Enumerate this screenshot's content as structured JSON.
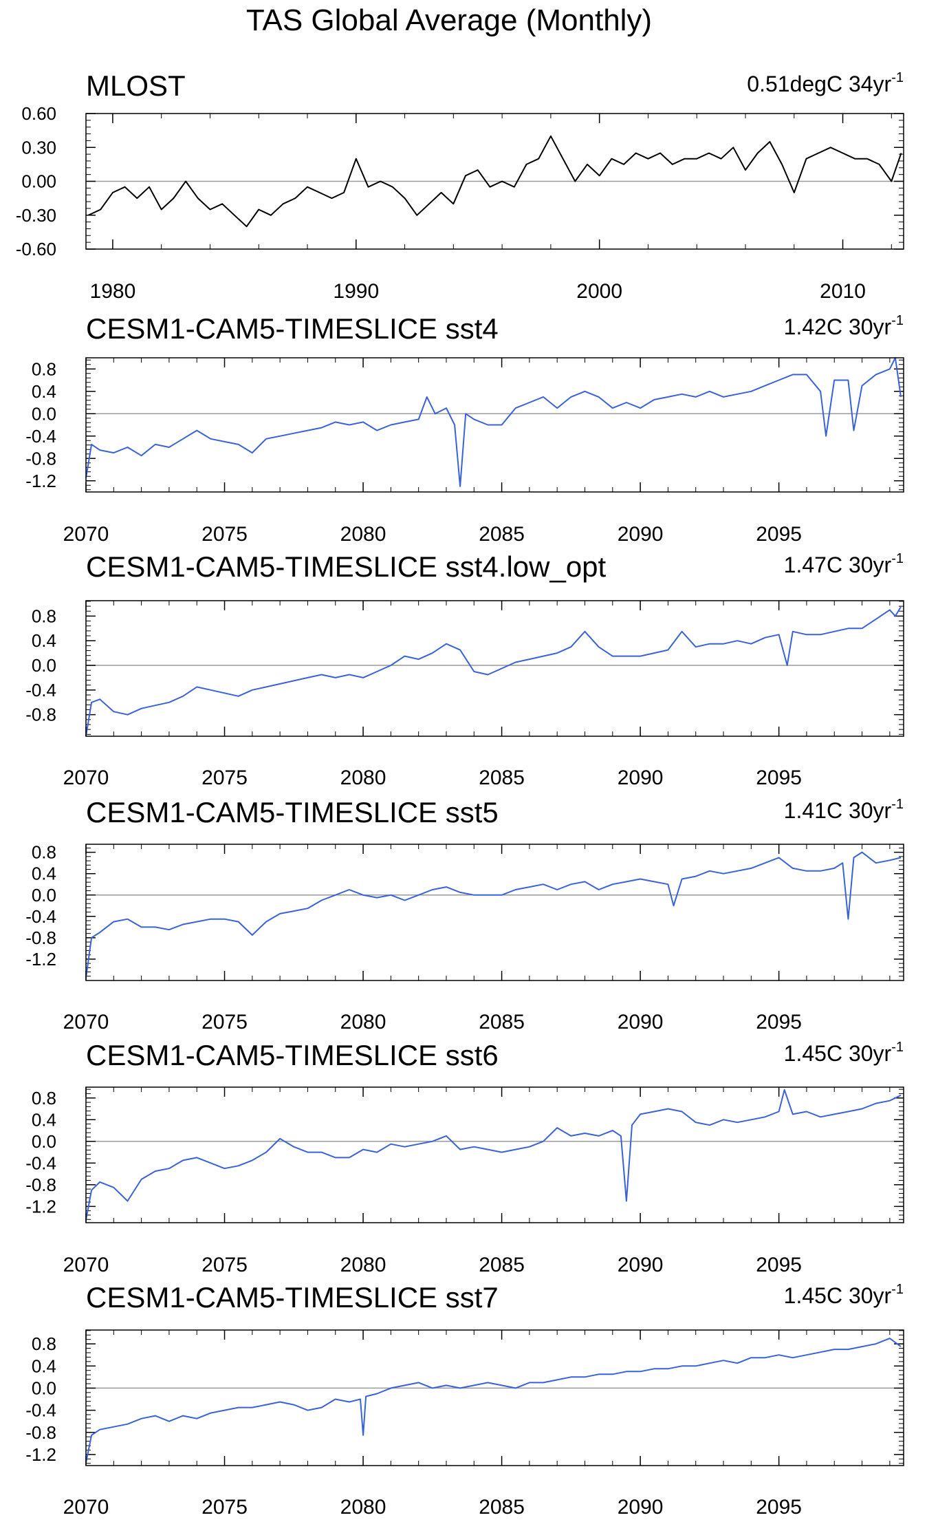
{
  "figure": {
    "title": "TAS Global Average (Monthly)"
  },
  "chart_data": [
    {
      "type": "line",
      "title": "MLOST",
      "trend_value": "0.51degC 34yr",
      "trend_exp": "-1",
      "color": "#000000",
      "xlim": [
        1978.9,
        2012.5
      ],
      "ylim": [
        -0.6,
        0.6
      ],
      "xticks": [
        1980,
        1990,
        2000,
        2010
      ],
      "yticks": [
        -0.6,
        -0.3,
        0.0,
        0.3,
        0.6
      ],
      "ytick_labels": [
        "-0.60",
        "-0.30",
        "0.00",
        "0.30",
        "0.60"
      ],
      "zero_line": true,
      "x": [
        1979.0,
        1979.5,
        1980.0,
        1980.5,
        1981.0,
        1981.5,
        1982.0,
        1982.5,
        1983.0,
        1983.5,
        1984.0,
        1984.5,
        1985.0,
        1985.5,
        1986.0,
        1986.5,
        1987.0,
        1987.5,
        1988.0,
        1988.5,
        1989.0,
        1989.5,
        1990.0,
        1990.5,
        1991.0,
        1991.5,
        1992.0,
        1992.5,
        1993.0,
        1993.5,
        1994.0,
        1994.5,
        1995.0,
        1995.5,
        1996.0,
        1996.5,
        1997.0,
        1997.5,
        1998.0,
        1998.5,
        1999.0,
        1999.5,
        2000.0,
        2000.5,
        2001.0,
        2001.5,
        2002.0,
        2002.5,
        2003.0,
        2003.5,
        2004.0,
        2004.5,
        2005.0,
        2005.5,
        2006.0,
        2006.5,
        2007.0,
        2007.5,
        2008.0,
        2008.5,
        2009.0,
        2009.5,
        2010.0,
        2010.5,
        2011.0,
        2011.5,
        2012.0,
        2012.4
      ],
      "values": [
        -0.3,
        -0.25,
        -0.1,
        -0.05,
        -0.15,
        -0.05,
        -0.25,
        -0.15,
        0.0,
        -0.15,
        -0.25,
        -0.2,
        -0.3,
        -0.4,
        -0.25,
        -0.3,
        -0.2,
        -0.15,
        -0.05,
        -0.1,
        -0.15,
        -0.1,
        0.2,
        -0.05,
        0.0,
        -0.05,
        -0.15,
        -0.3,
        -0.2,
        -0.1,
        -0.2,
        0.05,
        0.1,
        -0.05,
        0.0,
        -0.05,
        0.15,
        0.2,
        0.4,
        0.2,
        0.0,
        0.15,
        0.05,
        0.2,
        0.15,
        0.25,
        0.2,
        0.25,
        0.15,
        0.2,
        0.2,
        0.25,
        0.2,
        0.3,
        0.1,
        0.25,
        0.35,
        0.15,
        -0.1,
        0.2,
        0.25,
        0.3,
        0.25,
        0.2,
        0.2,
        0.15,
        0.0,
        0.25
      ]
    },
    {
      "type": "line",
      "title": "CESM1-CAM5-TIMESLICE sst4",
      "trend_value": "1.42C 30yr",
      "trend_exp": "-1",
      "color": "#3a62d8",
      "xlim": [
        2070,
        2099.5
      ],
      "ylim": [
        -1.4,
        1.0
      ],
      "xticks": [
        2070,
        2075,
        2080,
        2085,
        2090,
        2095
      ],
      "yticks": [
        -1.2,
        -0.8,
        -0.4,
        0.0,
        0.4,
        0.8
      ],
      "ytick_labels": [
        "-1.2",
        "-0.8",
        "-0.4",
        "0.0",
        "0.4",
        "0.8"
      ],
      "zero_line": true,
      "x": [
        2070.0,
        2070.2,
        2070.5,
        2071.0,
        2071.5,
        2072.0,
        2072.5,
        2073.0,
        2073.5,
        2074.0,
        2074.5,
        2075.0,
        2075.5,
        2076.0,
        2076.5,
        2077.0,
        2077.5,
        2078.0,
        2078.5,
        2079.0,
        2079.5,
        2080.0,
        2080.5,
        2081.0,
        2081.5,
        2082.0,
        2082.3,
        2082.6,
        2083.0,
        2083.3,
        2083.5,
        2083.7,
        2084.0,
        2084.5,
        2085.0,
        2085.5,
        2086.0,
        2086.5,
        2087.0,
        2087.5,
        2088.0,
        2088.5,
        2089.0,
        2089.5,
        2090.0,
        2090.5,
        2091.0,
        2091.5,
        2092.0,
        2092.5,
        2093.0,
        2093.5,
        2094.0,
        2094.5,
        2095.0,
        2095.5,
        2096.0,
        2096.5,
        2096.7,
        2097.0,
        2097.5,
        2097.7,
        2098.0,
        2098.5,
        2099.0,
        2099.2,
        2099.4
      ],
      "values": [
        -1.15,
        -0.55,
        -0.65,
        -0.7,
        -0.6,
        -0.75,
        -0.55,
        -0.6,
        -0.45,
        -0.3,
        -0.45,
        -0.5,
        -0.55,
        -0.7,
        -0.45,
        -0.4,
        -0.35,
        -0.3,
        -0.25,
        -0.15,
        -0.2,
        -0.15,
        -0.3,
        -0.2,
        -0.15,
        -0.1,
        0.3,
        0.0,
        0.1,
        -0.2,
        -1.3,
        0.0,
        -0.1,
        -0.2,
        -0.2,
        0.1,
        0.2,
        0.3,
        0.1,
        0.3,
        0.4,
        0.3,
        0.1,
        0.2,
        0.1,
        0.25,
        0.3,
        0.35,
        0.3,
        0.4,
        0.3,
        0.35,
        0.4,
        0.5,
        0.6,
        0.7,
        0.7,
        0.4,
        -0.4,
        0.6,
        0.6,
        -0.3,
        0.5,
        0.7,
        0.8,
        1.0,
        0.3
      ]
    },
    {
      "type": "line",
      "title": "CESM1-CAM5-TIMESLICE sst4.low_opt",
      "trend_value": "1.47C 30yr",
      "trend_exp": "-1",
      "color": "#3a62d8",
      "xlim": [
        2070,
        2099.5
      ],
      "ylim": [
        -1.15,
        1.05
      ],
      "xticks": [
        2070,
        2075,
        2080,
        2085,
        2090,
        2095
      ],
      "yticks": [
        -0.8,
        -0.4,
        0.0,
        0.4,
        0.8
      ],
      "ytick_labels": [
        "-0.8",
        "-0.4",
        "0.0",
        "0.4",
        "0.8"
      ],
      "zero_line": true,
      "x": [
        2070.0,
        2070.2,
        2070.5,
        2071.0,
        2071.5,
        2072.0,
        2072.5,
        2073.0,
        2073.5,
        2074.0,
        2074.5,
        2075.0,
        2075.5,
        2076.0,
        2076.5,
        2077.0,
        2077.5,
        2078.0,
        2078.5,
        2079.0,
        2079.5,
        2080.0,
        2080.5,
        2081.0,
        2081.5,
        2082.0,
        2082.5,
        2083.0,
        2083.5,
        2084.0,
        2084.5,
        2085.0,
        2085.5,
        2086.0,
        2086.5,
        2087.0,
        2087.5,
        2088.0,
        2088.5,
        2089.0,
        2089.5,
        2090.0,
        2090.5,
        2091.0,
        2091.5,
        2092.0,
        2092.5,
        2093.0,
        2093.5,
        2094.0,
        2094.5,
        2095.0,
        2095.3,
        2095.5,
        2096.0,
        2096.5,
        2097.0,
        2097.5,
        2098.0,
        2098.5,
        2099.0,
        2099.2,
        2099.4
      ],
      "values": [
        -1.15,
        -0.6,
        -0.55,
        -0.75,
        -0.8,
        -0.7,
        -0.65,
        -0.6,
        -0.5,
        -0.35,
        -0.4,
        -0.45,
        -0.5,
        -0.4,
        -0.35,
        -0.3,
        -0.25,
        -0.2,
        -0.15,
        -0.2,
        -0.15,
        -0.2,
        -0.1,
        0.0,
        0.15,
        0.1,
        0.2,
        0.35,
        0.25,
        -0.1,
        -0.15,
        -0.05,
        0.05,
        0.1,
        0.15,
        0.2,
        0.3,
        0.55,
        0.3,
        0.15,
        0.15,
        0.15,
        0.2,
        0.25,
        0.55,
        0.3,
        0.35,
        0.35,
        0.4,
        0.35,
        0.45,
        0.5,
        0.0,
        0.55,
        0.5,
        0.5,
        0.55,
        0.6,
        0.6,
        0.75,
        0.9,
        0.8,
        0.95
      ]
    },
    {
      "type": "line",
      "title": "CESM1-CAM5-TIMESLICE sst5",
      "trend_value": "1.41C 30yr",
      "trend_exp": "-1",
      "color": "#3a62d8",
      "xlim": [
        2070,
        2099.5
      ],
      "ylim": [
        -1.6,
        0.95
      ],
      "xticks": [
        2070,
        2075,
        2080,
        2085,
        2090,
        2095
      ],
      "yticks": [
        -1.2,
        -0.8,
        -0.4,
        0.0,
        0.4,
        0.8
      ],
      "ytick_labels": [
        "-1.2",
        "-0.8",
        "-0.4",
        "0.0",
        "0.4",
        "0.8"
      ],
      "zero_line": true,
      "x": [
        2070.0,
        2070.2,
        2070.5,
        2071.0,
        2071.5,
        2072.0,
        2072.5,
        2073.0,
        2073.5,
        2074.0,
        2074.5,
        2075.0,
        2075.5,
        2076.0,
        2076.5,
        2077.0,
        2077.5,
        2078.0,
        2078.5,
        2079.0,
        2079.5,
        2080.0,
        2080.5,
        2081.0,
        2081.5,
        2082.0,
        2082.5,
        2083.0,
        2083.5,
        2084.0,
        2084.5,
        2085.0,
        2085.5,
        2086.0,
        2086.5,
        2087.0,
        2087.5,
        2088.0,
        2088.5,
        2089.0,
        2089.5,
        2090.0,
        2090.5,
        2091.0,
        2091.2,
        2091.5,
        2092.0,
        2092.5,
        2093.0,
        2093.5,
        2094.0,
        2094.5,
        2095.0,
        2095.5,
        2096.0,
        2096.5,
        2097.0,
        2097.3,
        2097.5,
        2097.7,
        2098.0,
        2098.5,
        2099.0,
        2099.4
      ],
      "values": [
        -1.55,
        -0.8,
        -0.7,
        -0.5,
        -0.45,
        -0.6,
        -0.6,
        -0.65,
        -0.55,
        -0.5,
        -0.45,
        -0.45,
        -0.5,
        -0.75,
        -0.5,
        -0.35,
        -0.3,
        -0.25,
        -0.1,
        0.0,
        0.1,
        0.0,
        -0.05,
        0.0,
        -0.1,
        0.0,
        0.1,
        0.15,
        0.05,
        0.0,
        0.0,
        0.0,
        0.1,
        0.15,
        0.2,
        0.1,
        0.2,
        0.25,
        0.1,
        0.2,
        0.25,
        0.3,
        0.25,
        0.2,
        -0.2,
        0.3,
        0.35,
        0.45,
        0.4,
        0.45,
        0.5,
        0.6,
        0.7,
        0.5,
        0.45,
        0.45,
        0.5,
        0.6,
        -0.45,
        0.7,
        0.8,
        0.6,
        0.65,
        0.7
      ]
    },
    {
      "type": "line",
      "title": "CESM1-CAM5-TIMESLICE sst6",
      "trend_value": "1.45C 30yr",
      "trend_exp": "-1",
      "color": "#3a62d8",
      "xlim": [
        2070,
        2099.5
      ],
      "ylim": [
        -1.5,
        1.0
      ],
      "xticks": [
        2070,
        2075,
        2080,
        2085,
        2090,
        2095
      ],
      "yticks": [
        -1.2,
        -0.8,
        -0.4,
        0.0,
        0.4,
        0.8
      ],
      "ytick_labels": [
        "-1.2",
        "-0.8",
        "-0.4",
        "0.0",
        "0.4",
        "0.8"
      ],
      "zero_line": true,
      "x": [
        2070.0,
        2070.2,
        2070.5,
        2071.0,
        2071.5,
        2072.0,
        2072.5,
        2073.0,
        2073.5,
        2074.0,
        2074.5,
        2075.0,
        2075.5,
        2076.0,
        2076.5,
        2077.0,
        2077.5,
        2078.0,
        2078.5,
        2079.0,
        2079.5,
        2080.0,
        2080.5,
        2081.0,
        2081.5,
        2082.0,
        2082.5,
        2083.0,
        2083.5,
        2084.0,
        2084.5,
        2085.0,
        2085.5,
        2086.0,
        2086.5,
        2087.0,
        2087.5,
        2088.0,
        2088.5,
        2089.0,
        2089.3,
        2089.5,
        2089.7,
        2090.0,
        2090.5,
        2091.0,
        2091.5,
        2092.0,
        2092.5,
        2093.0,
        2093.5,
        2094.0,
        2094.5,
        2095.0,
        2095.2,
        2095.5,
        2096.0,
        2096.5,
        2097.0,
        2097.5,
        2098.0,
        2098.5,
        2099.0,
        2099.4
      ],
      "values": [
        -1.45,
        -0.9,
        -0.75,
        -0.85,
        -1.1,
        -0.7,
        -0.55,
        -0.5,
        -0.35,
        -0.3,
        -0.4,
        -0.5,
        -0.45,
        -0.35,
        -0.2,
        0.05,
        -0.1,
        -0.2,
        -0.2,
        -0.3,
        -0.3,
        -0.15,
        -0.2,
        -0.05,
        -0.1,
        -0.05,
        0.0,
        0.1,
        -0.15,
        -0.1,
        -0.15,
        -0.2,
        -0.15,
        -0.1,
        0.0,
        0.25,
        0.1,
        0.15,
        0.1,
        0.2,
        0.1,
        -1.1,
        0.3,
        0.5,
        0.55,
        0.6,
        0.55,
        0.35,
        0.3,
        0.4,
        0.35,
        0.4,
        0.45,
        0.55,
        0.95,
        0.5,
        0.55,
        0.45,
        0.5,
        0.55,
        0.6,
        0.7,
        0.75,
        0.85
      ]
    },
    {
      "type": "line",
      "title": "CESM1-CAM5-TIMESLICE sst7",
      "trend_value": "1.45C 30yr",
      "trend_exp": "-1",
      "color": "#3a62d8",
      "xlim": [
        2070,
        2099.5
      ],
      "ylim": [
        -1.4,
        1.05
      ],
      "xticks": [
        2070,
        2075,
        2080,
        2085,
        2090,
        2095
      ],
      "yticks": [
        -1.2,
        -0.8,
        -0.4,
        0.0,
        0.4,
        0.8
      ],
      "ytick_labels": [
        "-1.2",
        "-0.8",
        "-0.4",
        "0.0",
        "0.4",
        "0.8"
      ],
      "zero_line": true,
      "x": [
        2070.0,
        2070.2,
        2070.5,
        2071.0,
        2071.5,
        2072.0,
        2072.5,
        2073.0,
        2073.5,
        2074.0,
        2074.5,
        2075.0,
        2075.5,
        2076.0,
        2076.5,
        2077.0,
        2077.5,
        2078.0,
        2078.5,
        2079.0,
        2079.5,
        2079.9,
        2080.0,
        2080.1,
        2080.5,
        2081.0,
        2081.5,
        2082.0,
        2082.5,
        2083.0,
        2083.5,
        2084.0,
        2084.5,
        2085.0,
        2085.5,
        2086.0,
        2086.5,
        2087.0,
        2087.5,
        2088.0,
        2088.5,
        2089.0,
        2089.5,
        2090.0,
        2090.5,
        2091.0,
        2091.5,
        2092.0,
        2092.5,
        2093.0,
        2093.5,
        2094.0,
        2094.5,
        2095.0,
        2095.5,
        2096.0,
        2096.5,
        2097.0,
        2097.5,
        2098.0,
        2098.5,
        2099.0,
        2099.4
      ],
      "values": [
        -1.35,
        -0.85,
        -0.75,
        -0.7,
        -0.65,
        -0.55,
        -0.5,
        -0.6,
        -0.5,
        -0.55,
        -0.45,
        -0.4,
        -0.35,
        -0.35,
        -0.3,
        -0.25,
        -0.3,
        -0.4,
        -0.35,
        -0.2,
        -0.25,
        -0.2,
        -0.85,
        -0.15,
        -0.1,
        0.0,
        0.05,
        0.1,
        0.0,
        0.05,
        0.0,
        0.05,
        0.1,
        0.05,
        0.0,
        0.1,
        0.1,
        0.15,
        0.2,
        0.2,
        0.25,
        0.25,
        0.3,
        0.3,
        0.35,
        0.35,
        0.4,
        0.4,
        0.45,
        0.5,
        0.45,
        0.55,
        0.55,
        0.6,
        0.55,
        0.6,
        0.65,
        0.7,
        0.7,
        0.75,
        0.8,
        0.9,
        0.75
      ]
    }
  ]
}
